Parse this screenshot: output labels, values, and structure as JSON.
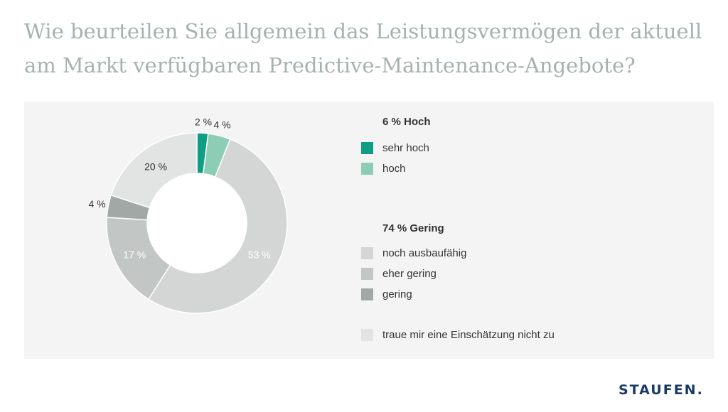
{
  "title": "Wie beurteilen Sie allgemein das Leistungsvermögen der aktuell am Markt verfügbaren Predictive-Maintenance-Angebote?",
  "logo_text": "STAUFEN.",
  "chart_data": {
    "type": "pie",
    "title": "Wie beurteilen Sie allgemein das Leistungsvermögen der aktuell am Markt verfügbaren Predictive-Maintenance-Angebote?",
    "donut": true,
    "slices": [
      {
        "label": "sehr hoch",
        "value": 2,
        "value_label": "2 %",
        "color": "#0f9e84"
      },
      {
        "label": "hoch",
        "value": 4,
        "value_label": "4 %",
        "color": "#8ecdb5"
      },
      {
        "label": "noch ausbaufähig",
        "value": 53,
        "value_label": "53 %",
        "color": "#d3d6d4"
      },
      {
        "label": "eher gering",
        "value": 17,
        "value_label": "17 %",
        "color": "#c2c6c4"
      },
      {
        "label": "gering",
        "value": 4,
        "value_label": "4 %",
        "color": "#a1a8a5"
      },
      {
        "label": "traue mir eine Einschätzung nicht zu",
        "value": 20,
        "value_label": "20 %",
        "color": "#e2e4e3"
      }
    ],
    "legend": {
      "placement": "right",
      "groups": [
        {
          "title": "6 % Hoch",
          "items": [
            "sehr hoch",
            "hoch"
          ]
        },
        {
          "title": "74 % Gering",
          "items": [
            "noch ausbaufähig",
            "eher gering",
            "gering"
          ]
        },
        {
          "title": "",
          "items": [
            "traue mir eine Einschätzung nicht zu"
          ]
        }
      ]
    }
  }
}
